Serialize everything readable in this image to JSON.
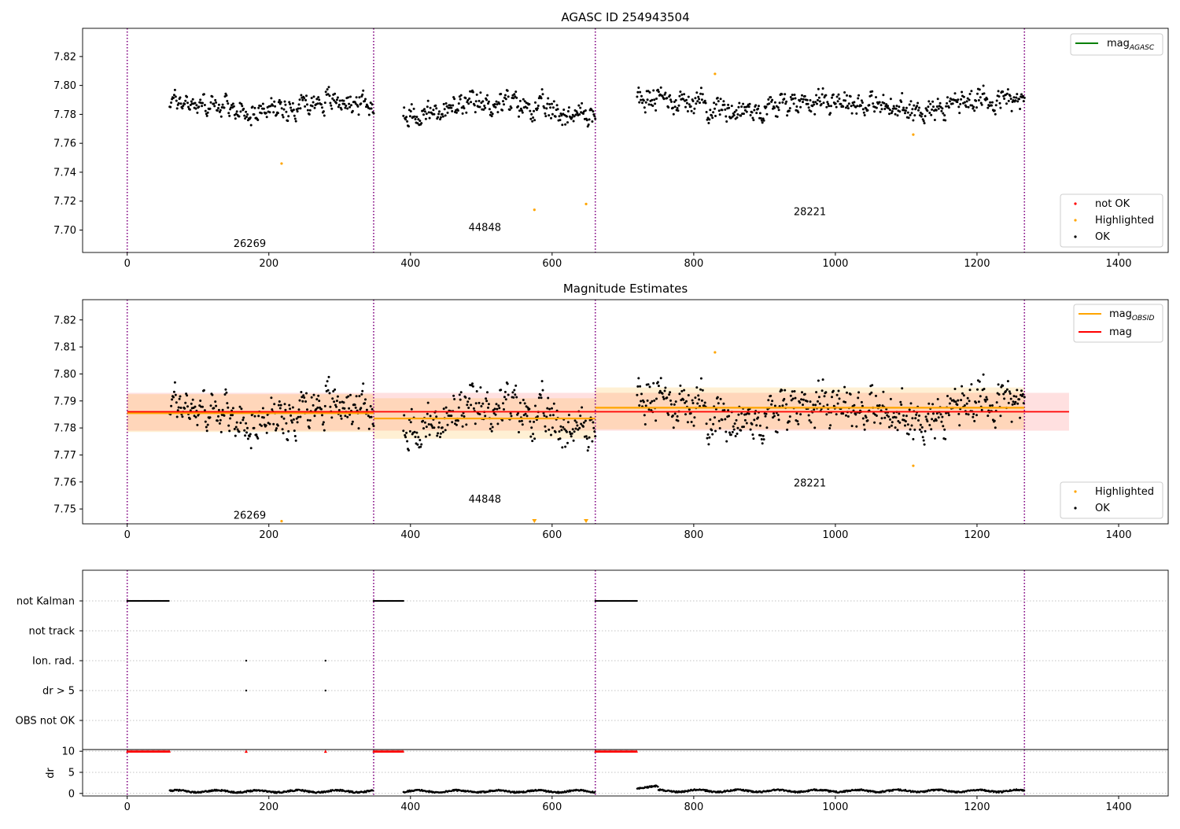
{
  "chart_data": [
    {
      "type": "scatter",
      "title": "AGASC ID 254943504",
      "xlabel": "",
      "ylabel": "",
      "xlim": [
        -63,
        1470
      ],
      "ylim": [
        7.6845,
        7.8395
      ],
      "xticks": [
        0,
        200,
        400,
        600,
        800,
        1000,
        1200,
        1400
      ],
      "yticks": [
        7.7,
        7.72,
        7.74,
        7.76,
        7.78,
        7.8,
        7.82
      ],
      "ytick_labels": [
        "7.70",
        "7.72",
        "7.74",
        "7.76",
        "7.78",
        "7.80",
        "7.82"
      ],
      "obsid_boundaries": [
        0,
        348,
        661,
        1267
      ],
      "obsid_labels": [
        {
          "text": "26269",
          "x": 173,
          "y": 7.6905
        },
        {
          "text": "44848",
          "x": 505,
          "y": 7.7015
        },
        {
          "text": "28221",
          "x": 964,
          "y": 7.7125
        }
      ],
      "ok_segments": [
        {
          "x_start": 60,
          "x_end": 348,
          "mean": 7.786,
          "amp": 0.01
        },
        {
          "x_start": 390,
          "x_end": 661,
          "mean": 7.784,
          "amp": 0.011
        },
        {
          "x_start": 720,
          "x_end": 1267,
          "mean": 7.787,
          "amp": 0.011
        }
      ],
      "highlighted_points": [
        {
          "x": 218,
          "y": 7.746
        },
        {
          "x": 575,
          "y": 7.714
        },
        {
          "x": 648,
          "y": 7.718
        },
        {
          "x": 830,
          "y": 7.808
        },
        {
          "x": 1110,
          "y": 7.766
        }
      ],
      "not_ok_points": [],
      "line_legend": {
        "label": "mag",
        "subscript": "AGASC",
        "color": "#008000"
      },
      "marker_legend": [
        {
          "label": "not OK",
          "color": "#ff0000"
        },
        {
          "label": "Highlighted",
          "color": "#ffa500"
        },
        {
          "label": "OK",
          "color": "#000000"
        }
      ],
      "legend_position": [
        "upper right",
        "lower right"
      ]
    },
    {
      "type": "scatter",
      "title": "Magnitude Estimates",
      "xlabel": "",
      "ylabel": "",
      "xlim": [
        -63,
        1470
      ],
      "ylim": [
        7.7445,
        7.8275
      ],
      "xticks": [
        0,
        200,
        400,
        600,
        800,
        1000,
        1200,
        1400
      ],
      "yticks": [
        7.75,
        7.76,
        7.77,
        7.78,
        7.79,
        7.8,
        7.81,
        7.82
      ],
      "ytick_labels": [
        "7.75",
        "7.76",
        "7.77",
        "7.78",
        "7.79",
        "7.80",
        "7.81",
        "7.82"
      ],
      "obsid_boundaries": [
        0,
        348,
        661,
        1267
      ],
      "obsid_labels": [
        {
          "text": "26269",
          "x": 173,
          "y": 7.7475
        },
        {
          "text": "44848",
          "x": 505,
          "y": 7.7535
        },
        {
          "text": "28221",
          "x": 964,
          "y": 7.7595
        }
      ],
      "mag": {
        "value": 7.786,
        "band": [
          7.779,
          7.793
        ],
        "x_range": [
          0,
          1330
        ],
        "color": "#ff0000"
      },
      "mag_obsid": [
        {
          "x_start": 0,
          "x_end": 348,
          "value": 7.7855,
          "band": [
            7.7785,
            7.7925
          ]
        },
        {
          "x_start": 348,
          "x_end": 661,
          "value": 7.7835,
          "band": [
            7.776,
            7.791
          ]
        },
        {
          "x_start": 661,
          "x_end": 1267,
          "value": 7.7875,
          "band": [
            7.7795,
            7.795
          ]
        }
      ],
      "highlighted_points": [
        {
          "x": 830,
          "y": 7.808
        },
        {
          "x": 1110,
          "y": 7.766
        },
        {
          "x": 218,
          "y": 7.7455
        }
      ],
      "below_range_markers": [
        {
          "x": 575,
          "y": 7.745
        },
        {
          "x": 648,
          "y": 7.745
        }
      ],
      "line_legend": [
        {
          "label": "mag",
          "subscript": "OBSID",
          "color": "#ffa500"
        },
        {
          "label": "mag",
          "subscript": "",
          "color": "#ff0000"
        }
      ],
      "marker_legend": [
        {
          "label": "Highlighted",
          "color": "#ffa500"
        },
        {
          "label": "OK",
          "color": "#000000"
        }
      ],
      "legend_position": [
        "upper right",
        "lower right"
      ]
    },
    {
      "type": "scatter",
      "title": "",
      "xlim": [
        -63,
        1470
      ],
      "xticks": [
        0,
        200,
        400,
        600,
        800,
        1000,
        1200,
        1400
      ],
      "flag_rows": [
        "not Kalman",
        "not track",
        "Ion. rad.",
        "dr > 5",
        "OBS not OK"
      ],
      "flags": {
        "not Kalman": [
          [
            0,
            60
          ],
          [
            348,
            390
          ],
          [
            661,
            720
          ]
        ],
        "not track": [],
        "Ion. rad.": [
          168,
          280
        ],
        "dr > 5": [
          168,
          280
        ],
        "OBS not OK": []
      },
      "dr_ylabel": "dr",
      "dr_ylim": [
        -0.6,
        10.4
      ],
      "dr_yticks": [
        0,
        5,
        10
      ],
      "dr_saturated_segments": [
        [
          0,
          60
        ],
        [
          348,
          390
        ],
        [
          661,
          720
        ]
      ],
      "dr_saturated_points": [
        168,
        280
      ],
      "dr_segments": [
        {
          "x_start": 60,
          "x_end": 348,
          "base": 0.5
        },
        {
          "x_start": 390,
          "x_end": 661,
          "base": 0.5
        },
        {
          "x_start": 720,
          "x_end": 750,
          "base": 1.5
        },
        {
          "x_start": 750,
          "x_end": 1267,
          "base": 0.6
        }
      ]
    }
  ]
}
